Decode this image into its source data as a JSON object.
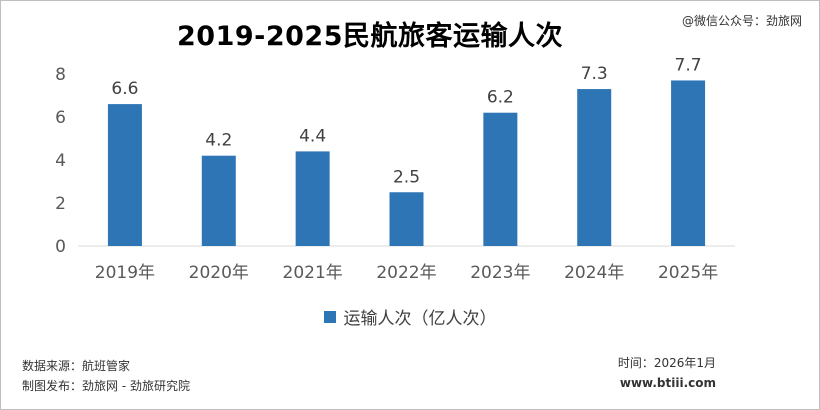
{
  "header": {
    "title": "2019-2025民航旅客运输人次",
    "watermark": "@微信公众号：劲旅网"
  },
  "legend": {
    "label": "运输人次（亿人次）"
  },
  "footer": {
    "source": "数据来源：航班管家",
    "publisher": "制图发布：劲旅网 - 劲旅研究院",
    "time": "时间：2026年1月",
    "url": "www.btiii.com"
  },
  "chart_data": {
    "type": "bar",
    "title": "2019-2025民航旅客运输人次",
    "categories": [
      "2019年",
      "2020年",
      "2021年",
      "2022年",
      "2023年",
      "2024年",
      "2025年"
    ],
    "series": [
      {
        "name": "运输人次（亿人次）",
        "values": [
          6.6,
          4.2,
          4.4,
          2.5,
          6.2,
          7.3,
          7.7
        ]
      }
    ],
    "ylim": [
      0,
      8
    ],
    "yticks": [
      0,
      2,
      4,
      6,
      8
    ],
    "grid": false,
    "data_labels": true,
    "legend_position": "bottom",
    "bar_color": "#2e75b6"
  }
}
